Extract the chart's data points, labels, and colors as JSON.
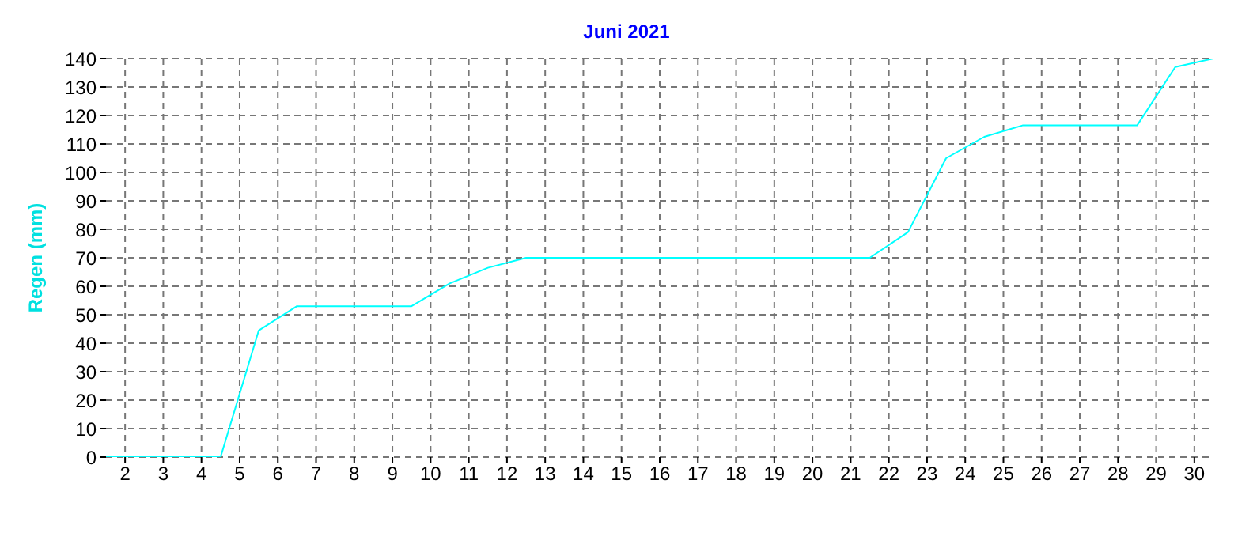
{
  "chart_data": {
    "type": "line",
    "title": "Juni 2021",
    "ylabel": "Regen  (mm)",
    "x": [
      1.5,
      2.5,
      3.5,
      4.5,
      5.5,
      6.5,
      7.5,
      8.5,
      9.5,
      10.5,
      11.5,
      12.5,
      13.5,
      14.5,
      15.5,
      16.5,
      17.5,
      18.5,
      19.5,
      20.5,
      21.5,
      22.5,
      23.5,
      24.5,
      25.5,
      26.5,
      27.5,
      28.5,
      29.5,
      30.5
    ],
    "series": [
      {
        "color": "#00ffff",
        "values": [
          0,
          0,
          0,
          0,
          44.5,
          53,
          53,
          53,
          53,
          61,
          66.5,
          70,
          70,
          70,
          70,
          70,
          70,
          70,
          70,
          70,
          70,
          79,
          105,
          112.5,
          116.5,
          116.5,
          116.5,
          116.5,
          137,
          140
        ]
      }
    ],
    "xlim": [
      1.5,
      30.5
    ],
    "xticks": [
      2,
      3,
      4,
      5,
      6,
      7,
      8,
      9,
      10,
      11,
      12,
      13,
      14,
      15,
      16,
      17,
      18,
      19,
      20,
      21,
      22,
      23,
      24,
      25,
      26,
      27,
      28,
      29,
      30
    ],
    "ylim": [
      0,
      140
    ],
    "yticks": [
      0,
      10,
      20,
      30,
      40,
      50,
      60,
      70,
      80,
      90,
      100,
      110,
      120,
      130,
      140
    ],
    "grid": true,
    "marker": "none",
    "line_style": "solid"
  }
}
